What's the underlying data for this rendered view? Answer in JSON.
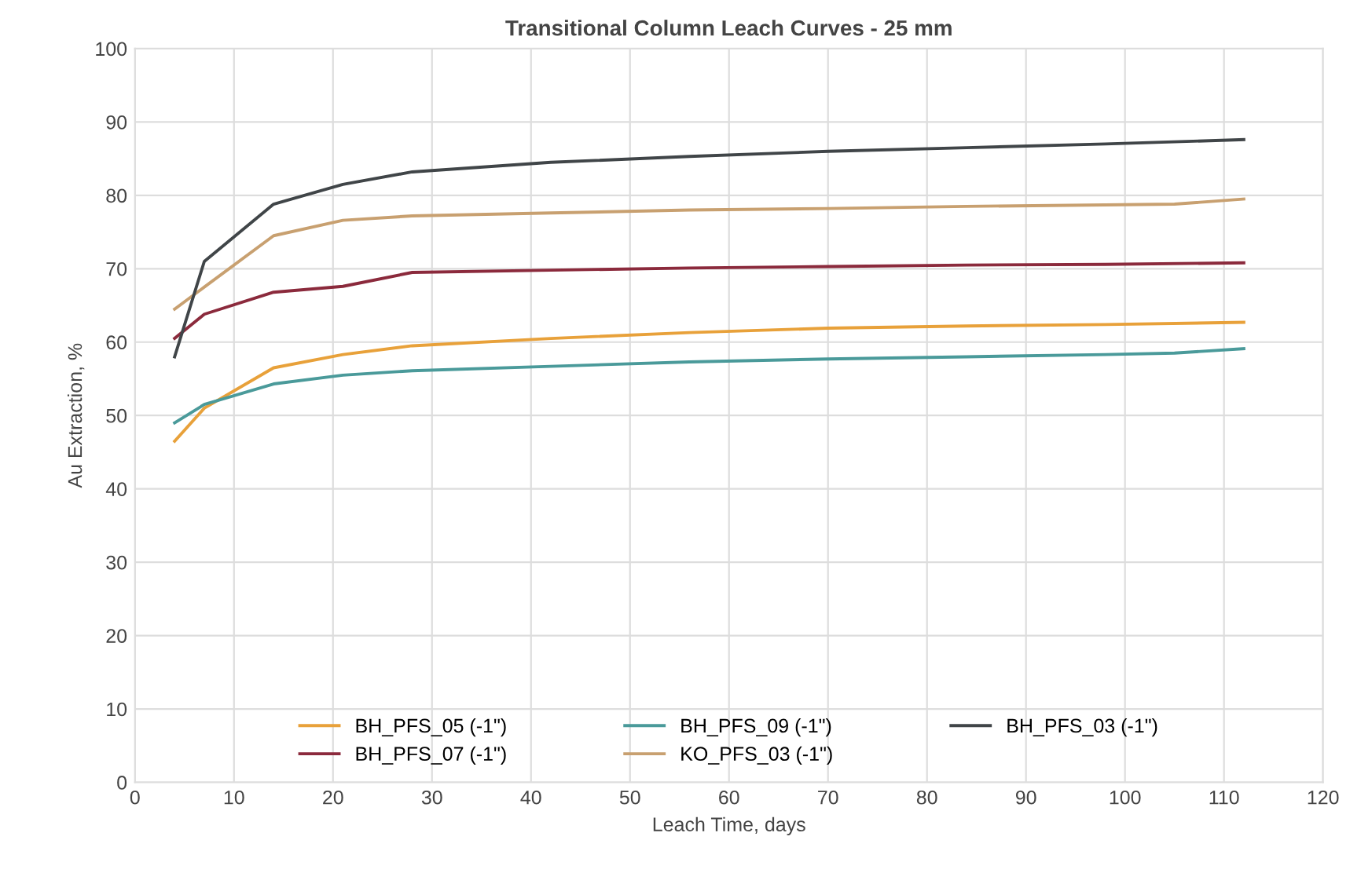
{
  "chart_data": {
    "type": "line",
    "title": "Transitional Column Leach Curves - 25 mm",
    "xlabel": "Leach Time, days",
    "ylabel": "Au Extraction, %",
    "xlim": [
      0,
      120
    ],
    "xticks": [
      0,
      10,
      20,
      30,
      40,
      50,
      60,
      70,
      80,
      90,
      100,
      110,
      120
    ],
    "ylim": [
      0,
      100
    ],
    "yticks": [
      0,
      10,
      20,
      30,
      40,
      50,
      60,
      70,
      80,
      90,
      100
    ],
    "grid": true,
    "legend": "bottom",
    "marker": "none",
    "line_style": "solid",
    "series": [
      {
        "name": "BH_PFS_05 (-1\")",
        "color": "#e8a13a",
        "x": [
          4,
          7,
          14,
          21,
          28,
          42,
          56,
          70,
          84,
          98,
          112
        ],
        "values": [
          46.5,
          51,
          56.5,
          58.3,
          59.5,
          60.5,
          61.3,
          61.9,
          62.2,
          62.4,
          62.7
        ]
      },
      {
        "name": "BH_PFS_07 (-1\")",
        "color": "#8b2a3c",
        "x": [
          4,
          7,
          14,
          21,
          28,
          42,
          56,
          70,
          84,
          98,
          112
        ],
        "values": [
          60.5,
          63.8,
          66.8,
          67.6,
          69.5,
          69.8,
          70.1,
          70.3,
          70.5,
          70.6,
          70.8
        ]
      },
      {
        "name": "BH_PFS_09 (-1\")",
        "color": "#4a9a9a",
        "x": [
          4,
          7,
          14,
          21,
          28,
          42,
          56,
          70,
          84,
          98,
          105,
          112
        ],
        "values": [
          49,
          51.5,
          54.3,
          55.5,
          56.1,
          56.7,
          57.3,
          57.7,
          58,
          58.3,
          58.5,
          59.1
        ]
      },
      {
        "name": "KO_PFS_03 (-1\")",
        "color": "#c8a070",
        "x": [
          4,
          7,
          14,
          21,
          28,
          42,
          56,
          70,
          84,
          98,
          105,
          112
        ],
        "values": [
          64.5,
          67.5,
          74.5,
          76.6,
          77.2,
          77.6,
          78,
          78.2,
          78.5,
          78.7,
          78.8,
          79.5
        ]
      },
      {
        "name": "BH_PFS_03 (-1\")",
        "color": "#404548",
        "x": [
          4,
          7,
          14,
          21,
          28,
          42,
          56,
          70,
          84,
          98,
          112
        ],
        "values": [
          58,
          71,
          78.8,
          81.5,
          83.2,
          84.5,
          85.3,
          86,
          86.5,
          87,
          87.6
        ]
      }
    ]
  }
}
